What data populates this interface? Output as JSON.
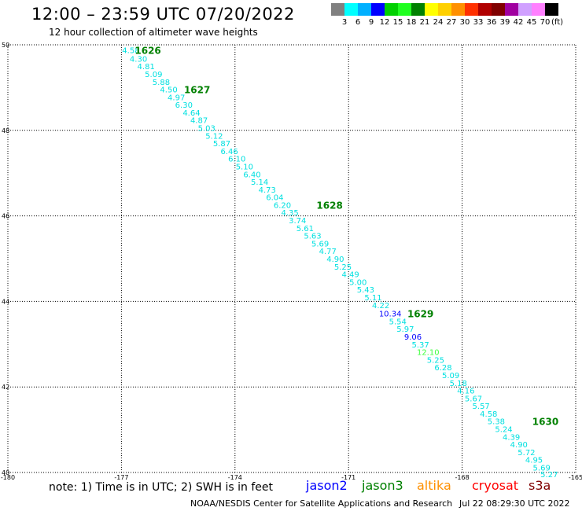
{
  "header": {
    "title": "12:00 – 23:59 UTC 07/20/2022",
    "subtitle": "12 hour collection of altimeter wave heights"
  },
  "colorbar": {
    "colors": [
      "#808080",
      "#00ffff",
      "#00b0ff",
      "#0000ff",
      "#00d000",
      "#20ff20",
      "#008000",
      "#ffff00",
      "#ffd000",
      "#ff9000",
      "#ff3000",
      "#b00000",
      "#800000",
      "#a000a0",
      "#d0a0ff",
      "#ff80ff",
      "#000000"
    ],
    "labels": [
      "3",
      "6",
      "9",
      "12",
      "15",
      "18",
      "21",
      "24",
      "27",
      "30",
      "33",
      "36",
      "39",
      "42",
      "45",
      "70"
    ],
    "unit": "(ft)"
  },
  "chart_data": {
    "type": "scatter",
    "xlim": [
      -180,
      -165
    ],
    "ylim": [
      40,
      50
    ],
    "xticks": [
      "-180",
      "-177",
      "-174",
      "-171",
      "-168",
      "-165"
    ],
    "yticks": [
      "40",
      "42",
      "44",
      "46",
      "48",
      "50"
    ],
    "grid": true,
    "points": [
      {
        "x": -176.75,
        "y": 49.88,
        "label": "4.58",
        "color": "#00e0e0"
      },
      {
        "x": -176.55,
        "y": 49.68,
        "label": "4.30",
        "color": "#00e0e0"
      },
      {
        "x": -176.35,
        "y": 49.5,
        "label": "4.81",
        "color": "#00e0e0"
      },
      {
        "x": -176.15,
        "y": 49.32,
        "label": "5.09",
        "color": "#00e0e0"
      },
      {
        "x": -175.95,
        "y": 49.14,
        "label": "5.88",
        "color": "#00e0e0"
      },
      {
        "x": -175.75,
        "y": 48.96,
        "label": "4.50",
        "color": "#00e0e0"
      },
      {
        "x": -175.55,
        "y": 48.78,
        "label": "4.97",
        "color": "#00e0e0"
      },
      {
        "x": -175.35,
        "y": 48.6,
        "label": "6.30",
        "color": "#00e0e0"
      },
      {
        "x": -175.15,
        "y": 48.42,
        "label": "4.64",
        "color": "#00e0e0"
      },
      {
        "x": -174.95,
        "y": 48.24,
        "label": "4.87",
        "color": "#00e0e0"
      },
      {
        "x": -174.75,
        "y": 48.06,
        "label": "5.03",
        "color": "#00e0e0"
      },
      {
        "x": -174.55,
        "y": 47.88,
        "label": "5.12",
        "color": "#00e0e0"
      },
      {
        "x": -174.35,
        "y": 47.7,
        "label": "5.87",
        "color": "#00e0e0"
      },
      {
        "x": -174.15,
        "y": 47.52,
        "label": "6.46",
        "color": "#00e0e0"
      },
      {
        "x": -173.95,
        "y": 47.34,
        "label": "6.10",
        "color": "#00e0e0"
      },
      {
        "x": -173.75,
        "y": 47.16,
        "label": "5.10",
        "color": "#00e0e0"
      },
      {
        "x": -173.55,
        "y": 46.98,
        "label": "6.40",
        "color": "#00e0e0"
      },
      {
        "x": -173.35,
        "y": 46.8,
        "label": "5.14",
        "color": "#00e0e0"
      },
      {
        "x": -173.15,
        "y": 46.62,
        "label": "4.73",
        "color": "#00e0e0"
      },
      {
        "x": -172.95,
        "y": 46.44,
        "label": "6.04",
        "color": "#00e0e0"
      },
      {
        "x": -172.75,
        "y": 46.26,
        "label": "6.20",
        "color": "#00e0e0"
      },
      {
        "x": -172.55,
        "y": 46.08,
        "label": "4.35",
        "color": "#00e0e0"
      },
      {
        "x": -172.35,
        "y": 45.9,
        "label": "3.74",
        "color": "#00e0e0"
      },
      {
        "x": -172.15,
        "y": 45.72,
        "label": "5.61",
        "color": "#00e0e0"
      },
      {
        "x": -171.95,
        "y": 45.54,
        "label": "5.63",
        "color": "#00e0e0"
      },
      {
        "x": -171.75,
        "y": 45.36,
        "label": "5.69",
        "color": "#00e0e0"
      },
      {
        "x": -171.55,
        "y": 45.18,
        "label": "4.77",
        "color": "#00e0e0"
      },
      {
        "x": -171.35,
        "y": 45.0,
        "label": "4.90",
        "color": "#00e0e0"
      },
      {
        "x": -171.15,
        "y": 44.82,
        "label": "5.25",
        "color": "#00e0e0"
      },
      {
        "x": -170.95,
        "y": 44.64,
        "label": "4.49",
        "color": "#00e0e0"
      },
      {
        "x": -170.75,
        "y": 44.46,
        "label": "5.00",
        "color": "#00e0e0"
      },
      {
        "x": -170.55,
        "y": 44.28,
        "label": "5.43",
        "color": "#00e0e0"
      },
      {
        "x": -170.35,
        "y": 44.1,
        "label": "5.11",
        "color": "#00e0e0"
      },
      {
        "x": -170.15,
        "y": 43.92,
        "label": "4.22",
        "color": "#00e0e0"
      },
      {
        "x": -169.9,
        "y": 43.72,
        "label": "10.34",
        "color": "#0000ff"
      },
      {
        "x": -169.7,
        "y": 43.54,
        "label": "5.54",
        "color": "#00e0e0"
      },
      {
        "x": -169.5,
        "y": 43.36,
        "label": "5.97",
        "color": "#00e0e0"
      },
      {
        "x": -169.3,
        "y": 43.18,
        "label": "9.06",
        "color": "#0000ff"
      },
      {
        "x": -169.1,
        "y": 43.0,
        "label": "5.37",
        "color": "#00e0e0"
      },
      {
        "x": -168.9,
        "y": 42.82,
        "label": "12.10",
        "color": "#40ff40"
      },
      {
        "x": -168.7,
        "y": 42.64,
        "label": "5.25",
        "color": "#00e0e0"
      },
      {
        "x": -168.5,
        "y": 42.46,
        "label": "6.28",
        "color": "#00e0e0"
      },
      {
        "x": -168.3,
        "y": 42.28,
        "label": "5.09",
        "color": "#00e0e0"
      },
      {
        "x": -168.1,
        "y": 42.1,
        "label": "5.18",
        "color": "#00e0e0"
      },
      {
        "x": -167.9,
        "y": 41.92,
        "label": "4.16",
        "color": "#00e0e0"
      },
      {
        "x": -167.7,
        "y": 41.74,
        "label": "5.67",
        "color": "#00e0e0"
      },
      {
        "x": -167.5,
        "y": 41.56,
        "label": "5.57",
        "color": "#00e0e0"
      },
      {
        "x": -167.3,
        "y": 41.38,
        "label": "4.58",
        "color": "#00e0e0"
      },
      {
        "x": -167.1,
        "y": 41.2,
        "label": "5.38",
        "color": "#00e0e0"
      },
      {
        "x": -166.9,
        "y": 41.02,
        "label": "5.24",
        "color": "#00e0e0"
      },
      {
        "x": -166.7,
        "y": 40.84,
        "label": "4.39",
        "color": "#00e0e0"
      },
      {
        "x": -166.5,
        "y": 40.66,
        "label": "4.90",
        "color": "#00e0e0"
      },
      {
        "x": -166.3,
        "y": 40.48,
        "label": "5.72",
        "color": "#00e0e0"
      },
      {
        "x": -166.1,
        "y": 40.3,
        "label": "4.95",
        "color": "#00e0e0"
      },
      {
        "x": -165.9,
        "y": 40.12,
        "label": "5.69",
        "color": "#00e0e0"
      },
      {
        "x": -165.7,
        "y": 39.96,
        "label": "5.27",
        "color": "#00e0e0"
      }
    ],
    "annotations": [
      {
        "x": -176.3,
        "y": 49.88,
        "text": "1626",
        "color": "#008000"
      },
      {
        "x": -175.0,
        "y": 48.96,
        "text": "1627",
        "color": "#008000"
      },
      {
        "x": -171.5,
        "y": 46.26,
        "text": "1628",
        "color": "#008000"
      },
      {
        "x": -169.1,
        "y": 43.72,
        "text": "1629",
        "color": "#008000"
      },
      {
        "x": -165.8,
        "y": 41.2,
        "text": "1630",
        "color": "#008000"
      }
    ]
  },
  "footer": {
    "note": "note: 1) Time is in UTC; 2) SWH is in feet",
    "legend": [
      {
        "label": "jason2",
        "color": "#0000ff"
      },
      {
        "label": "jason3",
        "color": "#008000"
      },
      {
        "label": "altika",
        "color": "#ff9000"
      },
      {
        "label": "cryosat",
        "color": "#ff0000"
      },
      {
        "label": "s3a",
        "color": "#800000"
      }
    ],
    "credit": "NOAA/NESDIS Center for Satellite Applications and Research",
    "timestamp": "Jul 22 08:29:30 UTC 2022"
  }
}
